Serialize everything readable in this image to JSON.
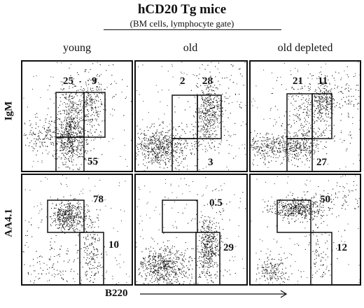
{
  "figure": {
    "title": "hCD20 Tg mice",
    "subtitle": "(BM cells, lymphocyte gate)",
    "columns": [
      "young",
      "old",
      "old depleted"
    ],
    "rows": [
      "IgM",
      "AA4.1"
    ],
    "x_axis_label": "B220",
    "panels": [
      {
        "row": "IgM",
        "column": "young",
        "gates": [
          "25",
          "9",
          "55"
        ]
      },
      {
        "row": "IgM",
        "column": "old",
        "gates": [
          "2",
          "28",
          "3"
        ]
      },
      {
        "row": "IgM",
        "column": "old depleted",
        "gates": [
          "21",
          "11",
          "27"
        ]
      },
      {
        "row": "AA4.1",
        "column": "young",
        "gates": [
          "78",
          "10"
        ]
      },
      {
        "row": "AA4.1",
        "column": "old",
        "gates": [
          "0.5",
          "29"
        ]
      },
      {
        "row": "AA4.1",
        "column": "old depleted",
        "gates": [
          "50",
          "12"
        ]
      }
    ]
  }
}
